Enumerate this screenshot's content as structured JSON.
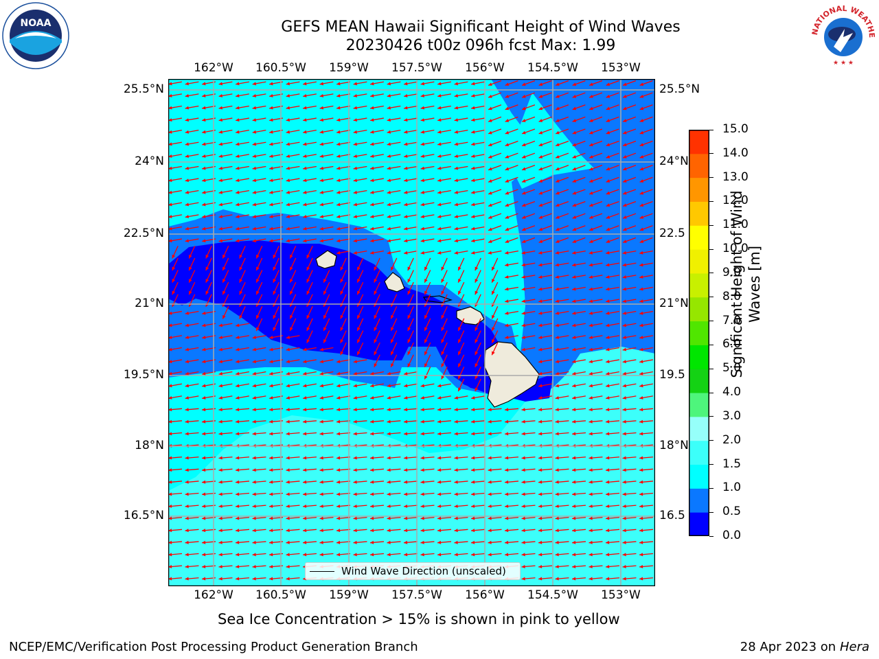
{
  "title_line1": "GEFS MEAN Hawaii Significant Height of Wind Waves",
  "title_line2": "20230426 t00z 096h fcst   Max: 1.99",
  "lon_labels": [
    "162°W",
    "160.5°W",
    "159°W",
    "157.5°W",
    "156°W",
    "154.5°W",
    "153°W"
  ],
  "lat_labels": [
    "25.5°N",
    "24°N",
    "22.5°N",
    "21°N",
    "19.5°N",
    "18°N",
    "16.5°N"
  ],
  "lat_labels_right": [
    "25.5°N",
    "24°N",
    "22.5",
    "21°N",
    "19.5",
    "18°N",
    "16.5"
  ],
  "legend_label": "Wind Wave Direction (unscaled)",
  "colorbar": {
    "title": "Significant Height of Wind\nWaves [m]",
    "tick_labels": [
      "0.0",
      "0.5",
      "1.0",
      "1.5",
      "2.0",
      "3.0",
      "4.0",
      "5.0",
      "6.0",
      "7.0",
      "8.0",
      "9.0",
      "10.0",
      "11.0",
      "12.0",
      "13.0",
      "14.0",
      "15.0"
    ],
    "colors": [
      "#0000ff",
      "#0a78ff",
      "#00ffff",
      "#3cfffa",
      "#96fffa",
      "#4ef57c",
      "#14d214",
      "#00e600",
      "#50e600",
      "#96e600",
      "#c8f000",
      "#f0f000",
      "#ffff00",
      "#ffc800",
      "#ff9600",
      "#ff6400",
      "#ff3200",
      "#ff0000"
    ]
  },
  "caption": "Sea Ice Concentration > 15% is shown in pink to yellow",
  "footer_left": "NCEP/EMC/Verification Post Processing Product Generation Branch",
  "footer_right_date": "28 Apr 2023 on ",
  "footer_right_machine": "Hera",
  "logo_left_text": "NOAA",
  "logo_right_text": "NATIONAL WEATHER SERVICE",
  "map_colors": {
    "ocean_low": "#0000ff",
    "ocean_mid": "#0a78ff",
    "ocean_high": "#00ffff",
    "ocean_top": "#3cfffa",
    "land": "#efebdc",
    "arrow": "#ff0000",
    "grid": "#aaaaaa"
  },
  "arrows": {
    "description_in_data": "wind wave direction field, mostly westward, southwestward near islands",
    "dominant_direction_deg": 190
  }
}
